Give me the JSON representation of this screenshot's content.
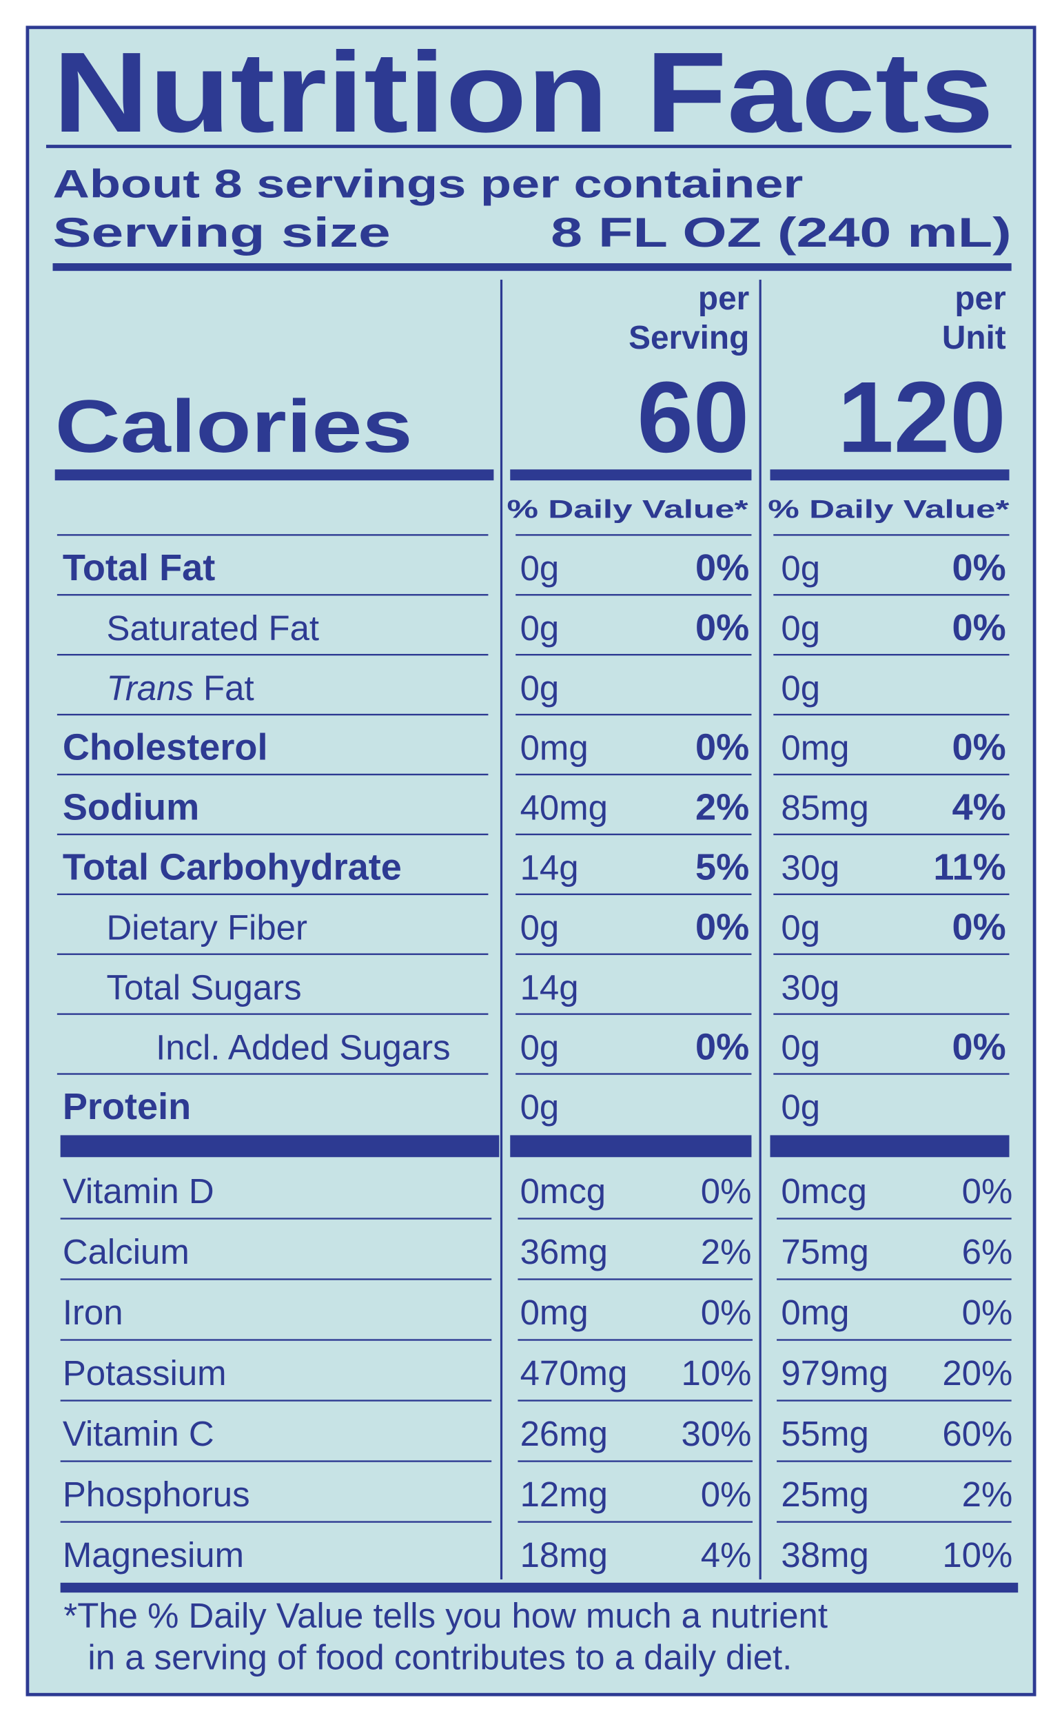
{
  "title": "Nutrition Facts",
  "servings": "About 8 servings per container",
  "serving_size": {
    "label": "Serving size",
    "value": "8 FL OZ (240 mL)"
  },
  "calories_label": "Calories",
  "columns": [
    {
      "label_top": "per",
      "label_bottom": "Serving",
      "calories": "60",
      "daily_value_header": "% Daily Value*"
    },
    {
      "label_top": "per",
      "label_bottom": "Unit",
      "calories": "120",
      "daily_value_header": "% Daily Value*"
    }
  ],
  "nutrients": [
    {
      "name": "Total Fat",
      "values": [
        {
          "amount": "0g",
          "dv": "0%"
        },
        {
          "amount": "0g",
          "dv": "0%"
        }
      ]
    },
    {
      "name": "Saturated Fat",
      "values": [
        {
          "amount": "0g",
          "dv": "0%"
        },
        {
          "amount": "0g",
          "dv": "0%"
        }
      ]
    },
    {
      "name_italic": "Trans",
      "name": "Fat",
      "values": [
        {
          "amount": "0g"
        },
        {
          "amount": "0g"
        }
      ]
    },
    {
      "name": "Cholesterol",
      "values": [
        {
          "amount": "0mg",
          "dv": "0%"
        },
        {
          "amount": "0mg",
          "dv": "0%"
        }
      ]
    },
    {
      "name": "Sodium",
      "values": [
        {
          "amount": "40mg",
          "dv": "2%"
        },
        {
          "amount": "85mg",
          "dv": "4%"
        }
      ]
    },
    {
      "name": "Total Carbohydrate",
      "values": [
        {
          "amount": "14g",
          "dv": "5%"
        },
        {
          "amount": "30g",
          "dv": "11%"
        }
      ]
    },
    {
      "name": "Dietary Fiber",
      "values": [
        {
          "amount": "0g",
          "dv": "0%"
        },
        {
          "amount": "0g",
          "dv": "0%"
        }
      ]
    },
    {
      "name": "Total Sugars",
      "values": [
        {
          "amount": "14g"
        },
        {
          "amount": "30g"
        }
      ]
    },
    {
      "name": "Incl. Added Sugars",
      "values": [
        {
          "amount": "0g",
          "dv": "0%"
        },
        {
          "amount": "0g",
          "dv": "0%"
        }
      ]
    },
    {
      "name": "Protein",
      "values": [
        {
          "amount": "0g"
        },
        {
          "amount": "0g"
        }
      ]
    }
  ],
  "vitamins": [
    {
      "name": "Vitamin D",
      "values": [
        {
          "amount": "0mcg",
          "dv": "0%"
        },
        {
          "amount": "0mcg",
          "dv": "0%"
        }
      ]
    },
    {
      "name": "Calcium",
      "values": [
        {
          "amount": "36mg",
          "dv": "2%"
        },
        {
          "amount": "75mg",
          "dv": "6%"
        }
      ]
    },
    {
      "name": "Iron",
      "values": [
        {
          "amount": "0mg",
          "dv": "0%"
        },
        {
          "amount": "0mg",
          "dv": "0%"
        }
      ]
    },
    {
      "name": "Potassium",
      "values": [
        {
          "amount": "470mg",
          "dv": "10%"
        },
        {
          "amount": "979mg",
          "dv": "20%"
        }
      ]
    },
    {
      "name": "Vitamin C",
      "values": [
        {
          "amount": "26mg",
          "dv": "30%"
        },
        {
          "amount": "55mg",
          "dv": "60%"
        }
      ]
    },
    {
      "name": "Phosphorus",
      "values": [
        {
          "amount": "12mg",
          "dv": "0%"
        },
        {
          "amount": "25mg",
          "dv": "2%"
        }
      ]
    },
    {
      "name": "Magnesium",
      "values": [
        {
          "amount": "18mg",
          "dv": "4%"
        },
        {
          "amount": "38mg",
          "dv": "10%"
        }
      ]
    }
  ],
  "footnote": [
    "*The % Daily Value tells you how much a nutrient",
    "in a serving of food contributes to a daily diet."
  ]
}
